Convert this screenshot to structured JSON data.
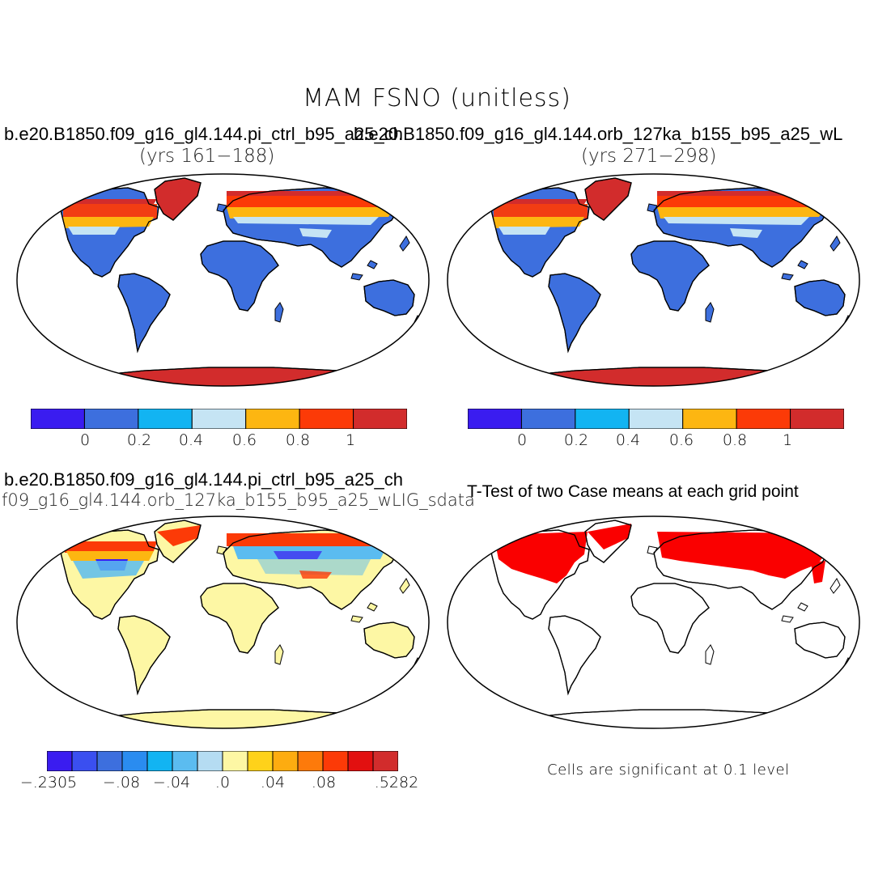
{
  "figure": {
    "title": "MAM FSNO (unitless)"
  },
  "panels": {
    "top_left": {
      "case": "b.e20.B1850.f09_g16_gl4.144.pi_ctrl_b95_a25_ch",
      "years": "(yrs 161−188)"
    },
    "top_right": {
      "case": "b.e20.B1850.f09_g16_gl4.144.orb_127ka_b155_b95_a25_wL",
      "years": "(yrs 271−298)"
    },
    "bottom_left": {
      "case": "b.e20.B1850.f09_g16_gl4.144.pi_ctrl_b95_a25_ch",
      "subtitle": "f09_g16_gl4.144.orb_127ka_b155_b95_a25_wLIG_sdata"
    },
    "bottom_right": {
      "title": "T-Test of two Case means at each grid point",
      "note": "Cells are significant at 0.1 level"
    }
  },
  "colorbars": {
    "case": {
      "colors": [
        "#3a1cf0",
        "#3d6fde",
        "#12b4f2",
        "#c5e4f4",
        "#fdb611",
        "#fc3a07",
        "#d22c2c"
      ],
      "labels": [
        "0",
        "0.2",
        "0.4",
        "0.6",
        "0.8",
        "1"
      ]
    },
    "diff": {
      "colors": [
        "#3a1cf0",
        "#3a4ff0",
        "#3d6fde",
        "#2a8cf0",
        "#12b4f2",
        "#5bbcf0",
        "#b5dcf2",
        "#fdf7a4",
        "#fed21a",
        "#fdac10",
        "#fd7a0b",
        "#fc3a07",
        "#e21010",
        "#d22c2c"
      ],
      "labels": [
        "−.2305",
        "−.08",
        "−.04",
        ".0",
        ".04",
        ".08",
        ".5282"
      ]
    }
  },
  "map_colors": {
    "land_low": "#3d6fde",
    "snow_mid": "#c5e4f4",
    "snow_orange": "#fdb611",
    "snow_red": "#fc3a07",
    "snow_dark": "#d22c2c",
    "diff_land": "#fdf7a4",
    "diff_blue": "#5bbcf0",
    "diff_deep": "#3a1cf0",
    "signif": "#fa0000"
  }
}
